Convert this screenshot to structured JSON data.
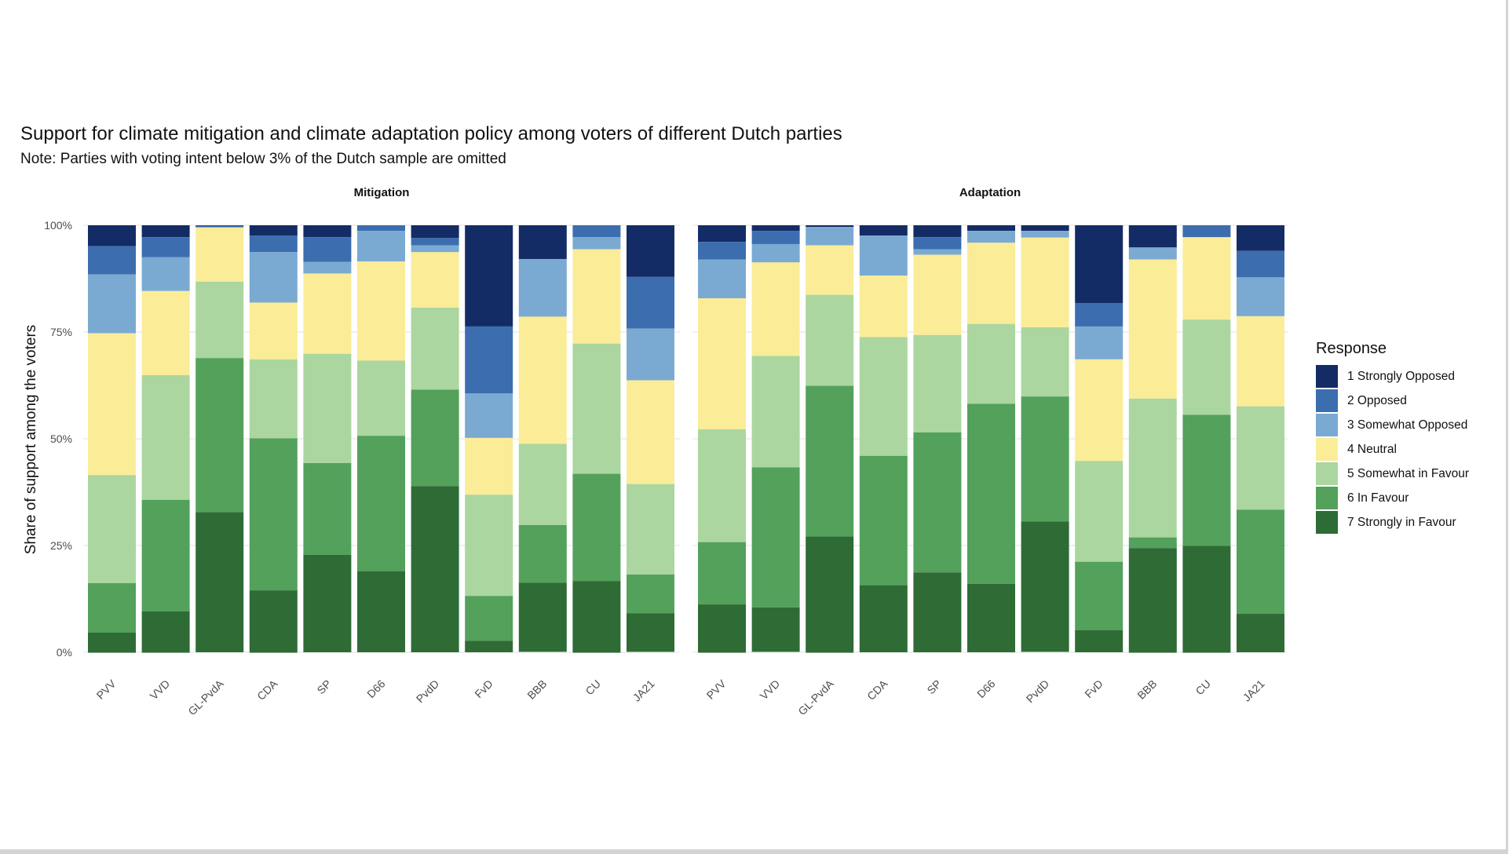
{
  "chart_data": {
    "type": "bar",
    "stacked": true,
    "title": "Support for climate mitigation and climate adaptation policy among voters of different Dutch parties",
    "subtitle": "Note: Parties with voting intent below 3% of the Dutch sample are omitted",
    "ylabel": "Share of support among the voters",
    "xlabel": "",
    "ylim": [
      0,
      100
    ],
    "yticks": [
      "0%",
      "25%",
      "50%",
      "75%",
      "100%"
    ],
    "grid": true,
    "legend": {
      "title": "Response",
      "placement": "right",
      "entries": [
        {
          "label": "1 Strongly Opposed",
          "color": "#142c65"
        },
        {
          "label": "2 Opposed",
          "color": "#3b6daf"
        },
        {
          "label": "3 Somewhat Opposed",
          "color": "#7aaad2"
        },
        {
          "label": "4 Neutral",
          "color": "#fbec98"
        },
        {
          "label": "5 Somewhat in Favour",
          "color": "#abd6a0"
        },
        {
          "label": "6 In Favour",
          "color": "#53a15b"
        },
        {
          "label": "7 Strongly in Favour",
          "color": "#2e6b35"
        }
      ]
    },
    "categories": [
      "PVV",
      "VVD",
      "GL-PvdA",
      "CDA",
      "SP",
      "D66",
      "PvdD",
      "FvD",
      "BBB",
      "CU",
      "JA21"
    ],
    "panels": [
      {
        "name": "Mitigation",
        "series": [
          {
            "name": "1 Strongly Opposed",
            "values": [
              4.9,
              2.8,
              0.1,
              2.4,
              2.8,
              0.0,
              3.0,
              23.7,
              7.9,
              0.0,
              12.1
            ]
          },
          {
            "name": "2 Opposed",
            "values": [
              6.6,
              4.7,
              0.4,
              3.9,
              5.8,
              1.3,
              1.7,
              15.7,
              0.0,
              2.8,
              12.1
            ]
          },
          {
            "name": "3 Somewhat Opposed",
            "values": [
              13.8,
              7.9,
              0.0,
              11.8,
              2.7,
              7.2,
              1.6,
              10.4,
              13.5,
              2.8,
              12.1
            ]
          },
          {
            "name": "4 Neutral",
            "values": [
              33.2,
              19.7,
              12.7,
              13.3,
              18.8,
              23.2,
              13.0,
              13.3,
              29.8,
              22.1,
              24.3
            ]
          },
          {
            "name": "5 Somewhat in Favour",
            "values": [
              25.3,
              29.2,
              17.9,
              18.5,
              25.6,
              17.6,
              19.2,
              23.7,
              19.0,
              30.5,
              21.2
            ]
          },
          {
            "name": "6 In Favour",
            "values": [
              11.6,
              26.1,
              36.1,
              35.6,
              21.5,
              31.7,
              22.6,
              10.5,
              13.5,
              25.1,
              9.1
            ]
          },
          {
            "name": "7 Strongly in Favour",
            "values": [
              4.7,
              9.7,
              32.8,
              14.6,
              22.8,
              19.0,
              38.9,
              2.7,
              16.2,
              16.8,
              9.0
            ]
          }
        ]
      },
      {
        "name": "Adaptation",
        "series": [
          {
            "name": "1 Strongly Opposed",
            "values": [
              3.9,
              1.3,
              0.4,
              2.4,
              2.8,
              1.3,
              1.3,
              18.2,
              5.2,
              0.0,
              6.0
            ]
          },
          {
            "name": "2 Opposed",
            "values": [
              4.1,
              3.1,
              0.0,
              0.0,
              2.8,
              0.0,
              0.0,
              5.5,
              0.0,
              2.8,
              6.2
            ]
          },
          {
            "name": "3 Somewhat Opposed",
            "values": [
              9.1,
              4.3,
              4.3,
              9.4,
              1.3,
              2.8,
              1.6,
              7.7,
              2.8,
              0.0,
              9.1
            ]
          },
          {
            "name": "4 Neutral",
            "values": [
              30.7,
              21.9,
              11.6,
              14.4,
              18.8,
              19.0,
              21.0,
              23.8,
              32.6,
              19.3,
              21.1
            ]
          },
          {
            "name": "5 Somewhat in Favour",
            "values": [
              26.4,
              26.1,
              21.3,
              27.8,
              22.8,
              18.7,
              16.2,
              23.6,
              32.5,
              22.3,
              24.2
            ]
          },
          {
            "name": "6 In Favour",
            "values": [
              14.6,
              32.8,
              35.3,
              30.3,
              32.8,
              42.2,
              29.3,
              16.0,
              2.5,
              30.7,
              24.4
            ]
          },
          {
            "name": "7 Strongly in Favour",
            "values": [
              11.3,
              10.4,
              27.2,
              15.7,
              18.7,
              16.0,
              30.5,
              5.2,
              24.5,
              25.0,
              9.0
            ]
          }
        ]
      }
    ]
  }
}
